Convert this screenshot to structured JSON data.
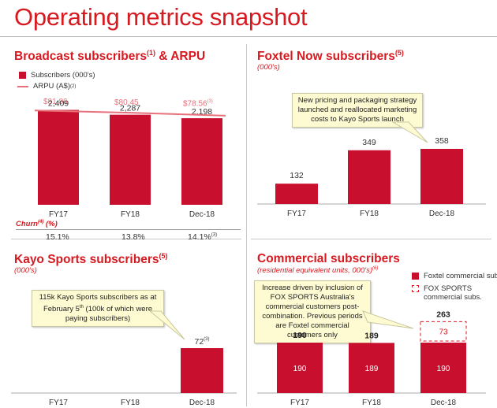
{
  "page": {
    "title": "Operating metrics snapshot"
  },
  "broadcast": {
    "title": "Broadcast subscribers",
    "title_sup": "(1)",
    "title_suffix": " & ARPU",
    "legend_subs": "Subscribers (000's)",
    "legend_arpu": "ARPU (A$)",
    "legend_arpu_sup": "(2)",
    "arpu_labels": [
      "$81.86",
      "$80.45",
      "$78.56"
    ],
    "arpu_last_sup": "(3)",
    "churn_label": "Churn",
    "churn_label_sup": "(4)",
    "churn_label_suffix": " (%)",
    "churn_values": [
      "15.1%",
      "13.8%",
      "14.1%"
    ],
    "churn_last_sup": "(3)"
  },
  "foxtel_now": {
    "title": "Foxtel Now subscribers",
    "title_sup": "(5)",
    "subtitle": "(000's)",
    "callout": "New pricing and packaging strategy launched and reallocated marketing costs to Kayo Sports launch"
  },
  "kayo": {
    "title": "Kayo Sports subscribers",
    "title_sup": "(5)",
    "subtitle": "(000's)",
    "callout_a": "115k Kayo Sports subscribers as at February 5",
    "callout_sup": "th",
    "callout_b": " (100k of which were paying subscribers)",
    "bar_label_sup": "(3)"
  },
  "commercial": {
    "title": "Commercial subscribers",
    "subtitle": "(residential equivalent units, 000's)",
    "subtitle_sup": "(6)",
    "legend_foxtel": "Foxtel commercial subs.",
    "legend_fox_sports": "FOX SPORTS commercial subs.",
    "callout": "Increase driven by inclusion of FOX SPORTS Australia's commercial customers post-combination. Previous periods are Foxtel commercial customers only"
  },
  "colors": {
    "bar": "#c8102e",
    "arpu_line": "#e8707a",
    "accent": "#d71920"
  },
  "chart_data": [
    {
      "type": "bar",
      "title": "Broadcast subscribers & ARPU",
      "categories": [
        "FY17",
        "FY18",
        "Dec-18"
      ],
      "series": [
        {
          "name": "Subscribers (000's)",
          "values": [
            2409,
            2287,
            2198
          ],
          "labels": [
            "2,409",
            "2,287",
            "2,198"
          ]
        },
        {
          "name": "ARPU (A$)",
          "values": [
            81.86,
            80.45,
            78.56
          ]
        }
      ],
      "ylim": [
        0,
        2600
      ]
    },
    {
      "type": "bar",
      "title": "Foxtel Now subscribers",
      "categories": [
        "FY17",
        "FY18",
        "Dec-18"
      ],
      "values": [
        132,
        349,
        358
      ],
      "labels": [
        "132",
        "349",
        "358"
      ],
      "ylim": [
        0,
        420
      ]
    },
    {
      "type": "bar",
      "title": "Kayo Sports subscribers",
      "categories": [
        "FY17",
        "FY18",
        "Dec-18"
      ],
      "values": [
        0,
        0,
        72
      ],
      "labels": [
        "",
        "",
        "72"
      ],
      "ylim": [
        0,
        120
      ]
    },
    {
      "type": "bar",
      "title": "Commercial subscribers",
      "categories": [
        "FY17",
        "FY18",
        "Dec-18"
      ],
      "series": [
        {
          "name": "Foxtel commercial subs.",
          "values": [
            190,
            189,
            190
          ]
        },
        {
          "name": "FOX SPORTS commercial subs.",
          "values": [
            0,
            0,
            73
          ]
        }
      ],
      "totals": [
        190,
        189,
        263
      ],
      "ylim": [
        0,
        300
      ]
    }
  ]
}
